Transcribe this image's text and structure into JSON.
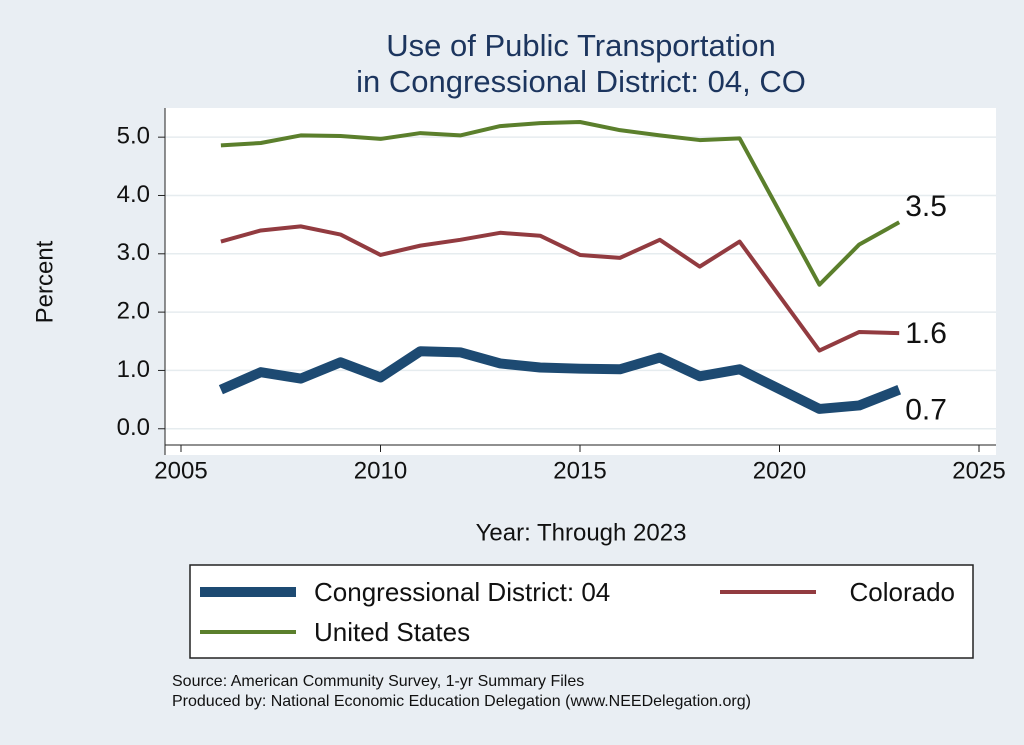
{
  "chart_data": {
    "type": "line",
    "title": "Use of Public Transportation",
    "subtitle": "in Congressional District: 04, CO",
    "x_label": "Year: Through 2023",
    "y_label": "Percent",
    "x": [
      2006,
      2007,
      2008,
      2009,
      2010,
      2011,
      2012,
      2013,
      2014,
      2015,
      2016,
      2017,
      2018,
      2019,
      2021,
      2022,
      2023
    ],
    "series": [
      {
        "name": "Congressional District: 04",
        "color": "#1d4a72",
        "width": 10,
        "values": [
          0.67,
          0.97,
          0.86,
          1.14,
          0.88,
          1.33,
          1.31,
          1.12,
          1.05,
          1.03,
          1.02,
          1.22,
          0.9,
          1.02,
          0.34,
          0.4,
          0.67
        ],
        "value_labels": [
          null,
          null,
          null,
          null,
          null,
          null,
          null,
          null,
          null,
          null,
          null,
          null,
          null,
          null,
          null,
          null,
          "0.7"
        ]
      },
      {
        "name": "Colorado",
        "color": "#923b40",
        "width": 4,
        "values": [
          3.21,
          3.4,
          3.47,
          3.33,
          2.98,
          3.14,
          3.24,
          3.36,
          3.31,
          2.98,
          2.93,
          3.24,
          2.78,
          3.21,
          1.34,
          1.66,
          1.64
        ],
        "value_labels": [
          null,
          null,
          null,
          null,
          null,
          null,
          null,
          null,
          null,
          null,
          null,
          null,
          null,
          null,
          null,
          null,
          "1.6"
        ]
      },
      {
        "name": "United States",
        "color": "#5b7f2c",
        "width": 4,
        "values": [
          4.86,
          4.9,
          5.03,
          5.02,
          4.97,
          5.07,
          5.03,
          5.19,
          5.24,
          5.26,
          5.12,
          5.03,
          4.95,
          4.98,
          2.47,
          3.16,
          3.54
        ],
        "value_labels": [
          null,
          null,
          null,
          null,
          null,
          null,
          null,
          null,
          null,
          null,
          null,
          null,
          null,
          null,
          null,
          null,
          "3.5"
        ]
      }
    ],
    "xlim": [
      2005,
      2025
    ],
    "xticks": [
      2005,
      2010,
      2015,
      2020,
      2025
    ],
    "ylim": [
      -0.45,
      5.5
    ],
    "yticks": [
      {
        "value": 0,
        "label": "0.0"
      },
      {
        "value": 1,
        "label": "1.0"
      },
      {
        "value": 2,
        "label": "2.0"
      },
      {
        "value": 3,
        "label": "3.0"
      },
      {
        "value": 4,
        "label": "4.0"
      },
      {
        "value": 5,
        "label": "5.0"
      }
    ],
    "grid": true,
    "notes": [
      "Source: American Community Survey, 1-yr Summary Files",
      "Produced by: National Economic Education Delegation (www.NEEDelegation.org)"
    ]
  }
}
